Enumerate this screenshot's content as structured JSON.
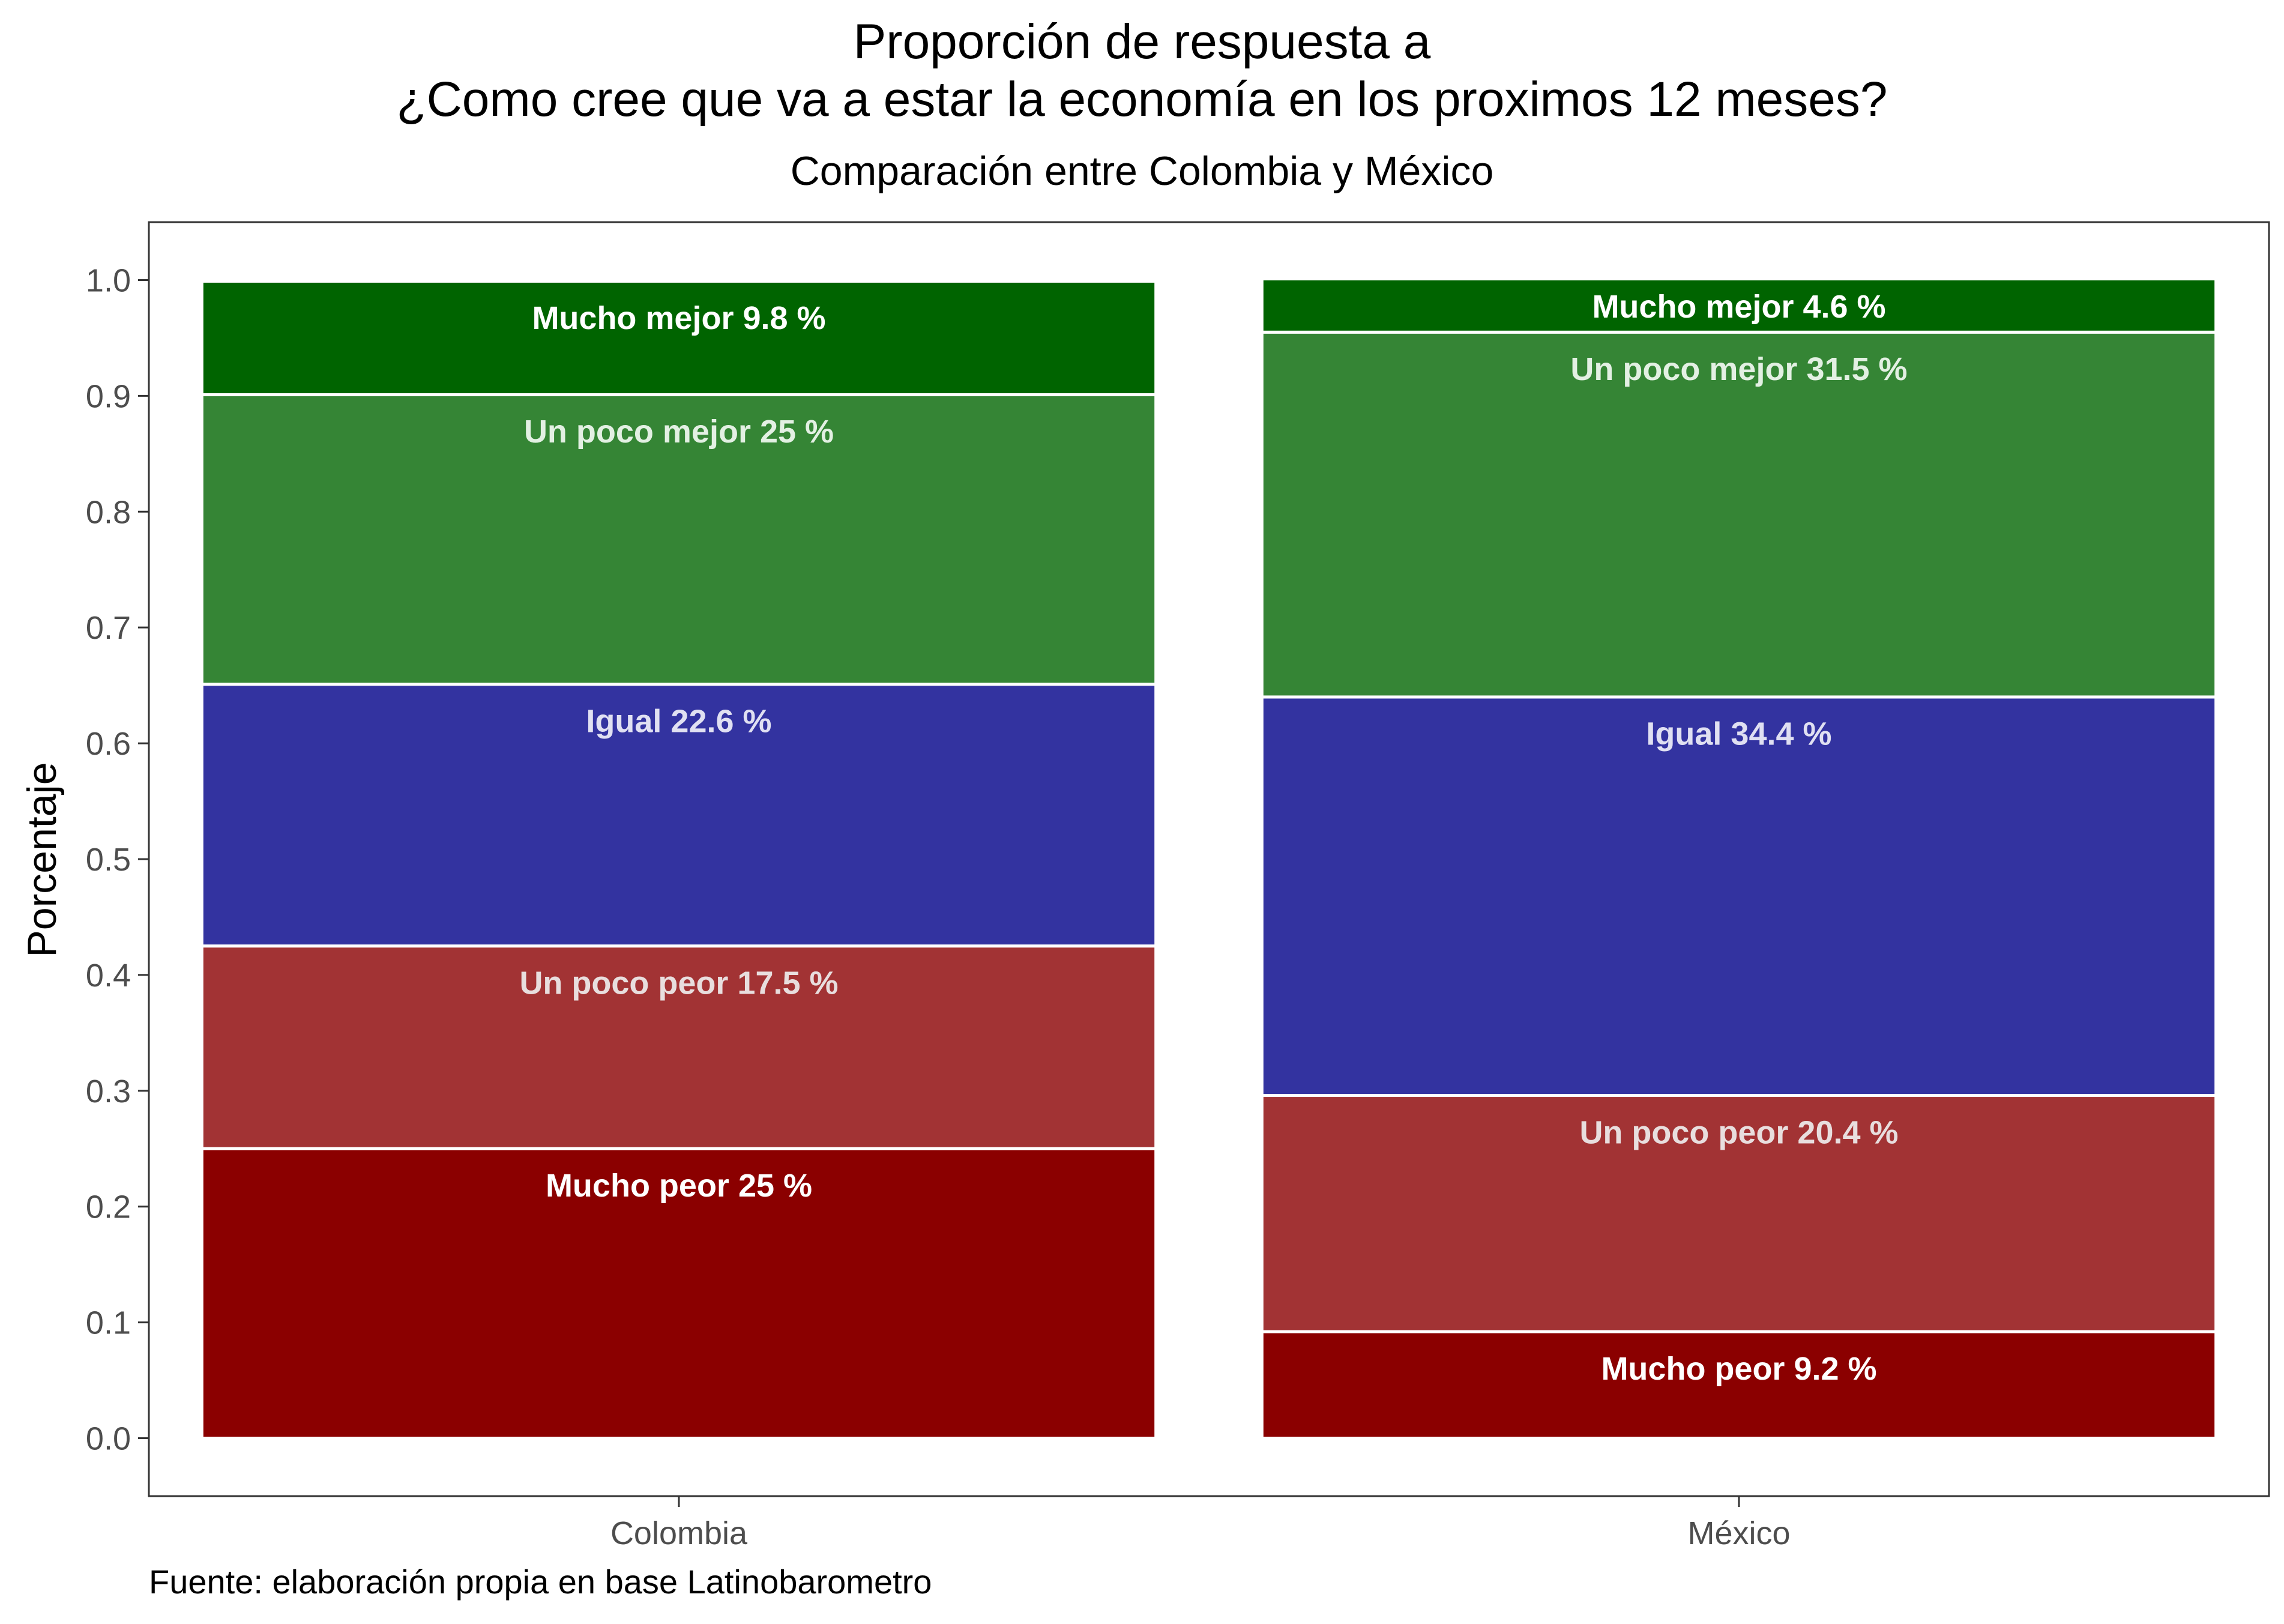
{
  "chart_data": {
    "type": "bar",
    "stacked": true,
    "title_lines": [
      "Proporción de respuesta a",
      "¿Como cree que va a estar la economía en los proximos 12 meses?"
    ],
    "subtitle": "Comparación entre Colombia y México",
    "ylabel": "Porcentaje",
    "xlabel": "",
    "caption": "Fuente: elaboración propia en base Latinobarometro",
    "ylim": [
      -0.05,
      1.05
    ],
    "yticks": [
      "0.0",
      "0.1",
      "0.2",
      "0.3",
      "0.4",
      "0.5",
      "0.6",
      "0.7",
      "0.8",
      "0.9",
      "1.0"
    ],
    "categories": [
      "Colombia",
      "México"
    ],
    "grid": false,
    "series": [
      {
        "name": "Mucho peor",
        "color": "#8b0000",
        "values": [
          0.25,
          0.092
        ],
        "labels": [
          "Mucho peor 25 %",
          "Mucho peor 9.2 %"
        ]
      },
      {
        "name": "Un poco peor",
        "color": "#a23334",
        "values": [
          0.175,
          0.204
        ],
        "labels": [
          "Un poco peor 17.5 %",
          "Un poco peor 20.4 %"
        ]
      },
      {
        "name": "Igual",
        "color": "#3333a0",
        "values": [
          0.226,
          0.344
        ],
        "labels": [
          "Igual 22.6 %",
          "Igual 34.4 %"
        ]
      },
      {
        "name": "Un poco mejor",
        "color": "#358535",
        "values": [
          0.25,
          0.315
        ],
        "labels": [
          "Un poco mejor 25 %",
          "Un poco mejor 31.5 %"
        ]
      },
      {
        "name": "Mucho mejor",
        "color": "#006400",
        "values": [
          0.098,
          0.046
        ],
        "labels": [
          "Mucho mejor 9.8 %",
          "Mucho mejor 4.6 %"
        ]
      }
    ],
    "label_colors": [
      "#ffffff",
      "#e8dede",
      "#e0e0f2",
      "#e3f0e3",
      "#ffffff"
    ]
  }
}
